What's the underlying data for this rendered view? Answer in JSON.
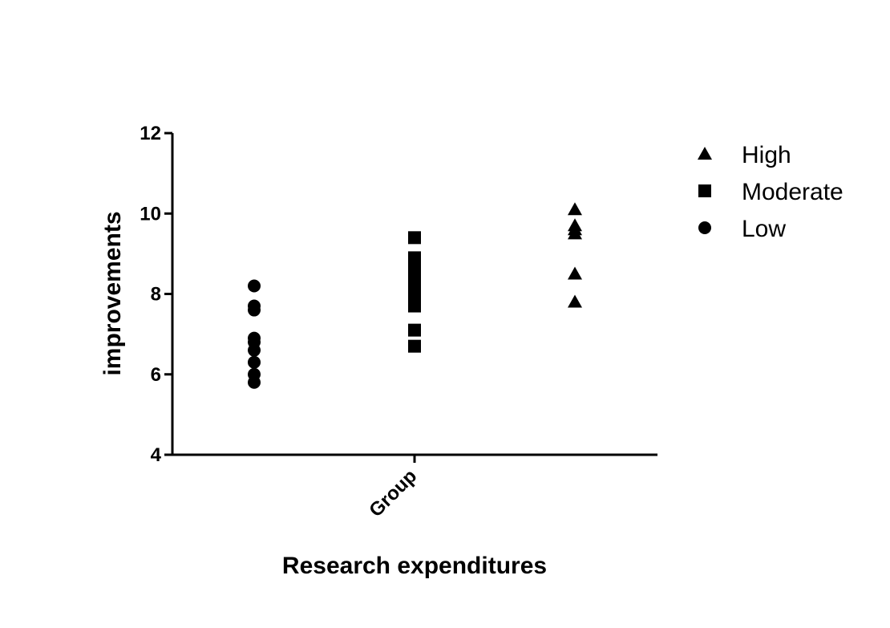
{
  "chart_data": {
    "type": "scatter",
    "title": "",
    "xlabel": "Research expenditures",
    "ylabel": "improvements",
    "categories": [
      "Group"
    ],
    "ylim": [
      4,
      12
    ],
    "yticks": [
      "4",
      "6",
      "8",
      "10",
      "12"
    ],
    "grid": false,
    "legend_position": "right",
    "series": [
      {
        "name": "High",
        "marker": "triangle",
        "category": "Group",
        "values": [
          10.1,
          9.7,
          9.6,
          9.5,
          8.5,
          7.8
        ]
      },
      {
        "name": "Moderate",
        "marker": "square",
        "category": "Group",
        "values": [
          9.4,
          8.9,
          8.7,
          8.5,
          8.3,
          8.1,
          7.9,
          7.7,
          7.1,
          6.7
        ]
      },
      {
        "name": "Low",
        "marker": "circle",
        "category": "Group",
        "values": [
          8.2,
          7.7,
          7.6,
          6.9,
          6.8,
          6.6,
          6.3,
          6.0,
          5.8
        ]
      }
    ],
    "colors": {
      "marker": "#000000",
      "axis": "#000000"
    }
  }
}
